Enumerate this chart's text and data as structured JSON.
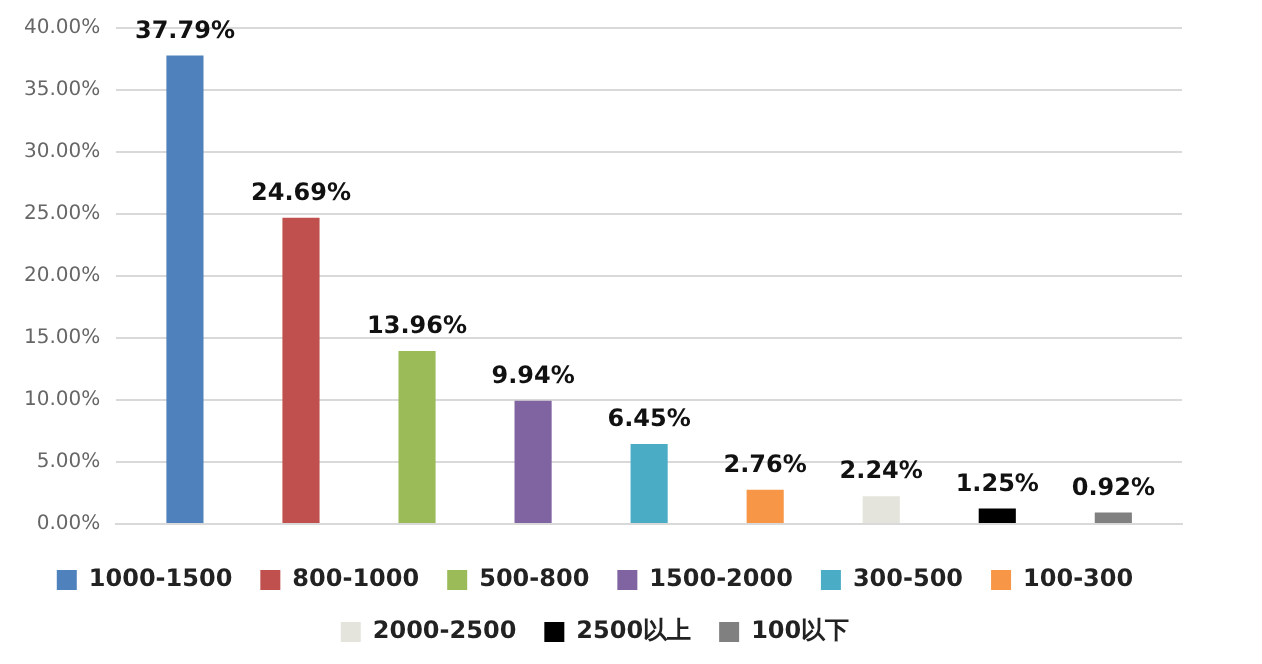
{
  "chart_data": {
    "type": "bar",
    "categories": [
      null
    ],
    "series": [
      {
        "name": "1000-1500",
        "color": "#4f81bd",
        "values": [
          37.79
        ],
        "value_labels": [
          "37.79%"
        ]
      },
      {
        "name": "800-1000",
        "color": "#c0504d",
        "values": [
          24.69
        ],
        "value_labels": [
          "24.69%"
        ]
      },
      {
        "name": "500-800",
        "color": "#9bbb59",
        "values": [
          13.96
        ],
        "value_labels": [
          "13.96%"
        ]
      },
      {
        "name": "1500-2000",
        "color": "#8064a2",
        "values": [
          9.94
        ],
        "value_labels": [
          "9.94%"
        ]
      },
      {
        "name": "300-500",
        "color": "#4bacc6",
        "values": [
          6.45
        ],
        "value_labels": [
          "6.45%"
        ]
      },
      {
        "name": "100-300",
        "color": "#f79646",
        "values": [
          2.76
        ],
        "value_labels": [
          "2.76%"
        ]
      },
      {
        "name": "2000-2500",
        "color": "#e4e4dc",
        "values": [
          2.24
        ],
        "value_labels": [
          "2.24%"
        ]
      },
      {
        "name": "2500以上",
        "color": "#000000",
        "values": [
          1.25
        ],
        "value_labels": [
          "1.25%"
        ]
      },
      {
        "name": "100以下",
        "color": "#808080",
        "values": [
          0.92
        ],
        "value_labels": [
          "0.92%"
        ]
      }
    ],
    "ylim": [
      0,
      40
    ],
    "yticks": [
      {
        "value": 0,
        "label": "0.00%"
      },
      {
        "value": 5,
        "label": "5.00%"
      },
      {
        "value": 10,
        "label": "10.00%"
      },
      {
        "value": 15,
        "label": "15.00%"
      },
      {
        "value": 20,
        "label": "20.00%"
      },
      {
        "value": 25,
        "label": "25.00%"
      },
      {
        "value": 30,
        "label": "30.00%"
      },
      {
        "value": 35,
        "label": "35.00%"
      },
      {
        "value": 40,
        "label": "40.00%"
      }
    ],
    "grid": "y",
    "legend": "bottom",
    "tick_labels": "y"
  }
}
